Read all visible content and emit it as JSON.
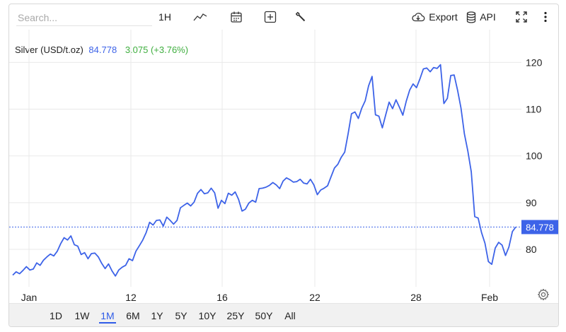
{
  "search": {
    "placeholder": "Search..."
  },
  "toolbar": {
    "interval_label": "1H",
    "chart_type_icon": "line-chart-icon",
    "calendar_icon": "calendar-icon",
    "add_icon": "plus-square-icon",
    "tools_icon": "wrench-icon",
    "export_label": "Export",
    "export_icon": "cloud-download-icon",
    "api_label": "API",
    "api_icon": "database-icon",
    "fullscreen_icon": "fullscreen-icon",
    "more_icon": "kebab-menu-icon"
  },
  "legend": {
    "name": "Silver (USD/t.oz)",
    "price": "84.778",
    "change": "3.075 (+3.76%)"
  },
  "ranges": {
    "items": [
      "1D",
      "1W",
      "1M",
      "6M",
      "1Y",
      "5Y",
      "10Y",
      "25Y",
      "50Y",
      "All"
    ],
    "active": "1M"
  },
  "settings_icon": "gear-icon",
  "colors": {
    "line": "#3d63e8",
    "change": "#3fae3f",
    "grid": "#e9e9e9",
    "badge": "#3d63e8"
  },
  "chart_data": {
    "type": "line",
    "title": "",
    "xlabel": "",
    "ylabel": "",
    "x_ticks": [
      "Jan",
      "12",
      "16",
      "22",
      "28",
      "Feb"
    ],
    "y_ticks": [
      80,
      90,
      100,
      110,
      120
    ],
    "ylim": [
      72,
      127
    ],
    "current_value_label": "84.778",
    "grid": true,
    "series": [
      {
        "values": [
          74.5,
          75.2,
          74.8,
          75.5,
          76.3,
          75.6,
          75.8,
          77.1,
          76.6,
          77.7,
          78.4,
          79.0,
          78.6,
          79.6,
          81.2,
          82.5,
          82.0,
          82.9,
          81.0,
          80.7,
          78.9,
          79.3,
          78.0,
          79.1,
          79.2,
          78.4,
          77.0,
          75.9,
          76.9,
          75.4,
          74.3,
          75.6,
          76.2,
          76.6,
          78.0,
          77.6,
          79.6,
          80.8,
          82.0,
          83.6,
          85.8,
          85.2,
          86.2,
          86.3,
          85.0,
          86.9,
          86.2,
          85.4,
          86.2,
          88.9,
          89.4,
          89.9,
          89.3,
          90.1,
          92.0,
          92.8,
          91.9,
          92.1,
          93.1,
          92.1,
          88.8,
          90.5,
          89.8,
          92.0,
          91.6,
          92.3,
          90.7,
          88.2,
          88.6,
          89.9,
          90.5,
          90.1,
          93.0,
          93.1,
          93.3,
          93.7,
          94.3,
          93.8,
          93.0,
          94.6,
          95.3,
          94.9,
          94.4,
          94.5,
          95.0,
          94.2,
          94.0,
          95.0,
          93.8,
          91.7,
          92.7,
          93.1,
          93.6,
          95.5,
          97.4,
          98.2,
          99.7,
          100.8,
          104.7,
          109.0,
          109.4,
          108.0,
          110.2,
          111.8,
          115.0,
          117.0,
          108.8,
          108.5,
          106.0,
          108.8,
          111.5,
          110.1,
          112.0,
          110.4,
          108.7,
          111.7,
          114.1,
          115.4,
          114.6,
          116.5,
          118.6,
          118.8,
          118.0,
          118.9,
          118.7,
          119.5,
          111.2,
          112.3,
          117.2,
          117.3,
          114.0,
          110.2,
          104.7,
          101.0,
          96.6,
          87.0,
          86.7,
          83.6,
          81.3,
          77.4,
          76.8,
          80.3,
          81.5,
          80.9,
          78.7,
          80.5,
          83.8,
          84.8
        ]
      }
    ]
  }
}
